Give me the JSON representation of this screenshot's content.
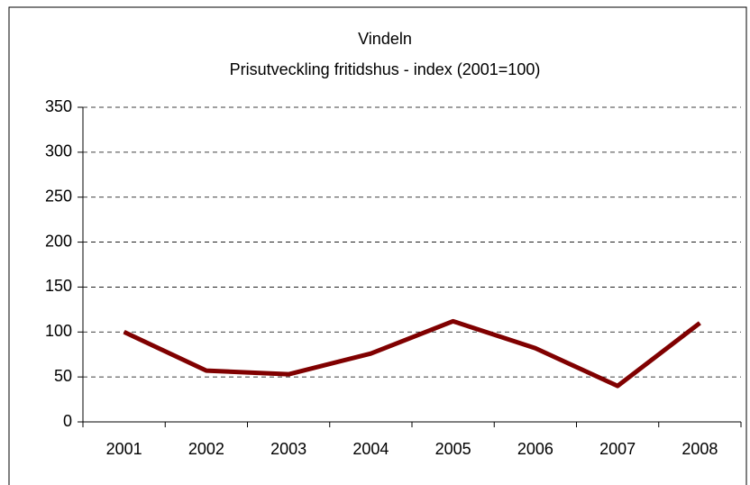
{
  "chart_data": {
    "type": "line",
    "title": "Vindeln",
    "subtitle": "Prisutveckling fritidshus - index (2001=100)",
    "categories": [
      "2001",
      "2002",
      "2003",
      "2004",
      "2005",
      "2006",
      "2007",
      "2008"
    ],
    "values": [
      100,
      57,
      53,
      76,
      112,
      82,
      40,
      110
    ],
    "color": "#800000",
    "ylim": [
      0,
      350
    ],
    "yticks": [
      0,
      50,
      100,
      150,
      200,
      250,
      300,
      350
    ],
    "grid": true
  }
}
